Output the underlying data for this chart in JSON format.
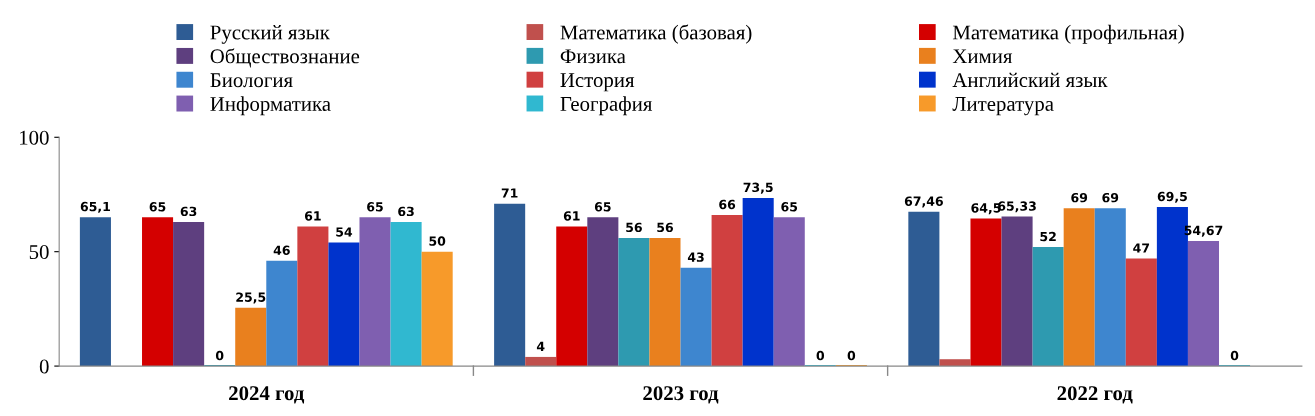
{
  "chart_data": {
    "type": "bar",
    "categories": [
      "2024 год",
      "2023 год",
      "2022 год"
    ],
    "ylim": [
      0,
      100
    ],
    "yticks": [
      0,
      50,
      100
    ],
    "grid": false,
    "legend": "top",
    "series": [
      {
        "name": "Русский язык",
        "color": "#2e5c94",
        "values": [
          65.1,
          71,
          67.46
        ],
        "value_labels": [
          "65,1",
          "71",
          "67,46"
        ]
      },
      {
        "name": "Математика (базовая)",
        "color": "#c0504d",
        "values": [
          null,
          4,
          3
        ],
        "value_labels": [
          null,
          "4",
          null
        ]
      },
      {
        "name": "Математика (профильная)",
        "color": "#d40000",
        "values": [
          65,
          61,
          64.5
        ],
        "value_labels": [
          "65",
          "61",
          "64,5"
        ]
      },
      {
        "name": "Обществознание",
        "color": "#5e3f7f",
        "values": [
          63,
          65,
          65.33
        ],
        "value_labels": [
          "63",
          "65",
          "65,33"
        ]
      },
      {
        "name": "Физика",
        "color": "#2e9ab0",
        "values": [
          0,
          56,
          52
        ],
        "value_labels": [
          "0",
          "56",
          "52"
        ]
      },
      {
        "name": "Химия",
        "color": "#e9801e",
        "values": [
          25.5,
          56,
          69
        ],
        "value_labels": [
          "25,5",
          "56",
          "69"
        ]
      },
      {
        "name": "Биология",
        "color": "#3e86cf",
        "values": [
          46,
          43,
          69
        ],
        "value_labels": [
          "46",
          "43",
          "69"
        ]
      },
      {
        "name": "История",
        "color": "#d04040",
        "values": [
          61,
          66,
          47
        ],
        "value_labels": [
          "61",
          "66",
          "47"
        ]
      },
      {
        "name": "Английский язык",
        "color": "#0033cc",
        "values": [
          54,
          73.5,
          69.5
        ],
        "value_labels": [
          "54",
          "73,5",
          "69,5"
        ]
      },
      {
        "name": "Информатика",
        "color": "#7f5fb0",
        "values": [
          65,
          65,
          54.67
        ],
        "value_labels": [
          "65",
          "65",
          "54,67"
        ]
      },
      {
        "name": "География",
        "color": "#30b8d0",
        "values": [
          63,
          0,
          0
        ],
        "value_labels": [
          "63",
          "0",
          "0"
        ]
      },
      {
        "name": "Литература",
        "color": "#f79a2a",
        "values": [
          50,
          0,
          null
        ],
        "value_labels": [
          "50",
          "0",
          null
        ]
      }
    ]
  }
}
